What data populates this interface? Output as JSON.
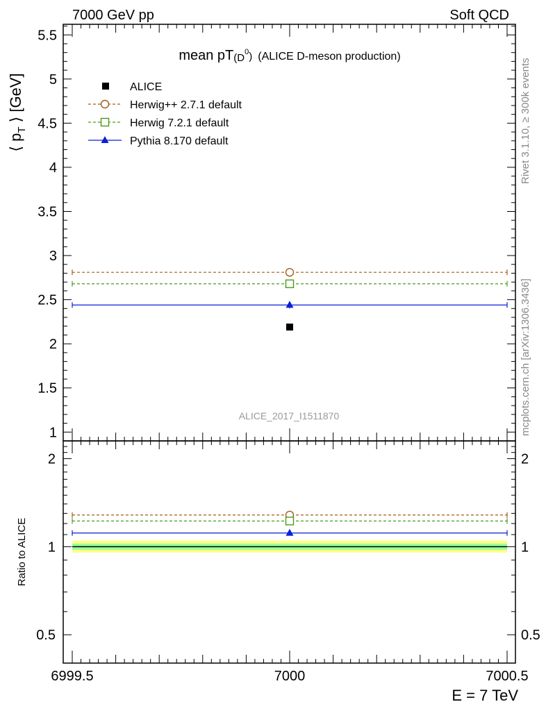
{
  "header": {
    "left": "7000 GeV pp",
    "right": "Soft QCD"
  },
  "side": {
    "rivet": "Rivet 3.1.10, ≥ 300k events",
    "mcplots": "mcplots.cern.ch [arXiv:1306.3436]"
  },
  "chart_data": [
    {
      "type": "scatter",
      "panel": "main",
      "title_main": "mean pT",
      "title_sub": "(D",
      "title_sup": "0",
      "title_close": ")",
      "title_rest": "(ALICE D-meson production)",
      "ylabel": "⟨ p",
      "ylabel_sub": "T",
      "ylabel_rest": " ⟩ [GeV]",
      "watermark": "ALICE_2017_I1511870",
      "xlim": [
        6999.5,
        7000.5
      ],
      "ylim": [
        0.9,
        5.62
      ],
      "yticks": [
        "1",
        "1.5",
        "2",
        "2.5",
        "3",
        "3.5",
        "4",
        "4.5",
        "5",
        "5.5"
      ],
      "legend_position": "top-left",
      "series": [
        {
          "name": "ALICE",
          "marker": "square-filled",
          "color": "#000000",
          "x": [
            7000
          ],
          "y": [
            2.19
          ]
        },
        {
          "name": "Herwig++ 2.7.1 default",
          "marker": "circle-open",
          "color": "#a45a19",
          "dashed": true,
          "x": [
            7000
          ],
          "y": [
            2.81
          ]
        },
        {
          "name": "Herwig 7.2.1 default",
          "marker": "square-open",
          "color": "#4a9a15",
          "dashed": true,
          "x": [
            7000
          ],
          "y": [
            2.68
          ]
        },
        {
          "name": "Pythia 8.170 default",
          "marker": "triangle-filled",
          "color": "#0a1fd6",
          "dashed": false,
          "x": [
            7000
          ],
          "y": [
            2.44
          ],
          "yerr": 0.04
        }
      ]
    },
    {
      "type": "scatter",
      "panel": "ratio",
      "ylabel": "Ratio to ALICE",
      "xlabel": "E = 7 TeV",
      "xticks": [
        "6999.5",
        "7000",
        "7000.5"
      ],
      "yscale": "log",
      "ylim": [
        0.4,
        2.3
      ],
      "yticks": [
        "0.5",
        "1",
        "2"
      ],
      "band_colors": [
        "#ffff88",
        "#99ff99"
      ],
      "series": [
        {
          "name": "Herwig++ 2.7.1 default",
          "color": "#a45a19",
          "dashed": true,
          "y": [
            1.283
          ]
        },
        {
          "name": "Herwig 7.2.1 default",
          "color": "#4a9a15",
          "dashed": true,
          "y": [
            1.224
          ]
        },
        {
          "name": "Pythia 8.170 default",
          "color": "#0a1fd6",
          "dashed": false,
          "y": [
            1.114
          ]
        }
      ]
    }
  ]
}
